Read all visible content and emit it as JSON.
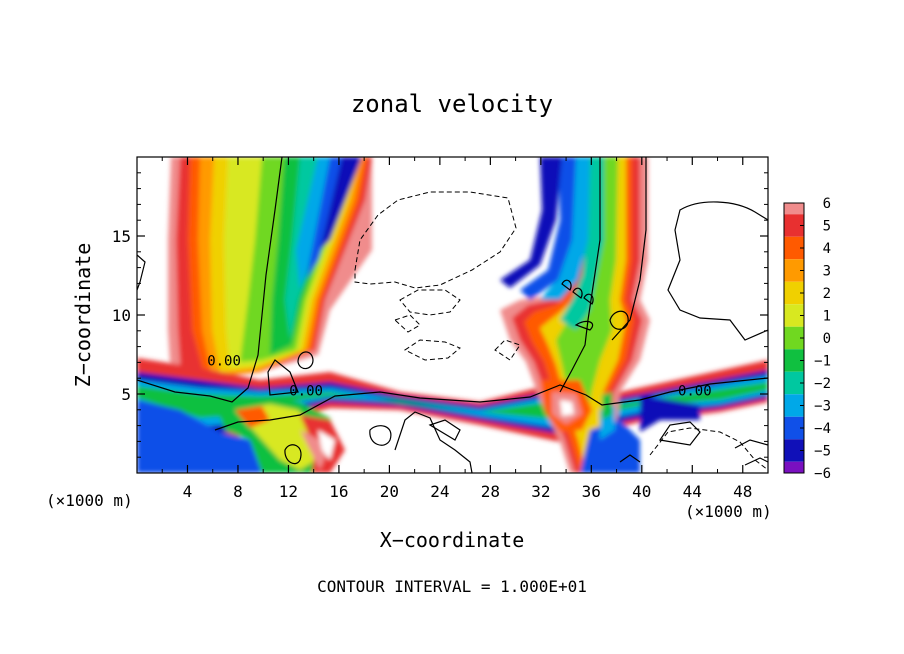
{
  "chart_data": {
    "type": "heatmap",
    "title": "zonal velocity",
    "xlabel": "X−coordinate",
    "ylabel": "Z−coordinate",
    "x_unit_left": "(×1000 m)",
    "x_unit_right": "(×1000 m)",
    "footer": "CONTOUR INTERVAL = 1.000E+01",
    "xlim": [
      0,
      50
    ],
    "ylim": [
      0,
      20
    ],
    "x_ticks": [
      4,
      8,
      12,
      16,
      20,
      24,
      28,
      32,
      36,
      40,
      44,
      48
    ],
    "y_ticks": [
      5,
      10,
      15
    ],
    "colorbar": {
      "ticks": [
        "6",
        "5",
        "4",
        "3",
        "2",
        "1",
        "0",
        "−1",
        "−2",
        "−3",
        "−4",
        "−5",
        "−6"
      ],
      "colors": [
        "#f08c8c",
        "#e83030",
        "#ff5a00",
        "#ff9a00",
        "#f0d000",
        "#d8e820",
        "#70d820",
        "#10c040",
        "#00c8a0",
        "#00a8e8",
        "#1050e8",
        "#1010b8",
        "#7a10c0"
      ]
    },
    "contour_labels": [
      {
        "text": "0.00",
        "x": 6.9,
        "y": 7.0
      },
      {
        "text": "0.00",
        "x": 13.4,
        "y": 5.1
      },
      {
        "text": "0.00",
        "x": 44.2,
        "y": 5.1
      }
    ]
  }
}
